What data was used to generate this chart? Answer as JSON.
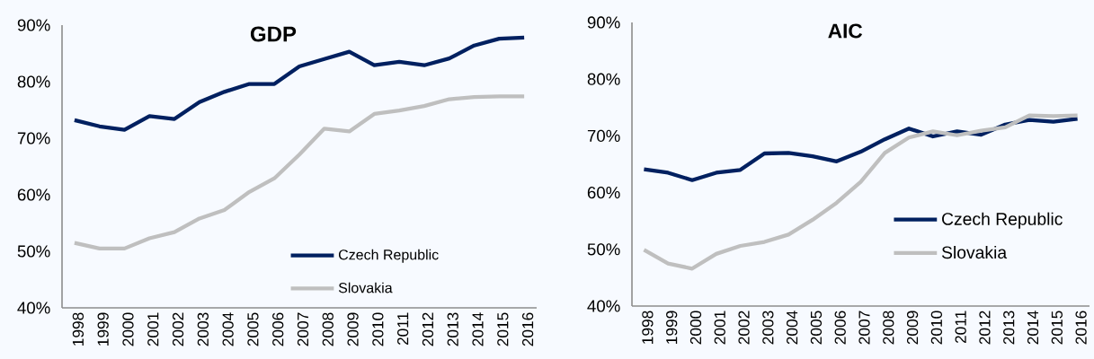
{
  "chart_data": [
    {
      "type": "line",
      "title": "GDP",
      "categories": [
        "1998",
        "1999",
        "2000",
        "2001",
        "2002",
        "2003",
        "2004",
        "2005",
        "2006",
        "2007",
        "2008",
        "2009",
        "2010",
        "2011",
        "2012",
        "2013",
        "2014",
        "2015",
        "2016"
      ],
      "series": [
        {
          "name": "Czech Republic",
          "color": "#002060",
          "values": [
            73.2,
            72.1,
            71.5,
            73.9,
            73.4,
            76.4,
            78.2,
            79.6,
            79.6,
            82.7,
            84.0,
            85.3,
            82.9,
            83.5,
            82.9,
            84.1,
            86.4,
            87.6,
            87.8
          ]
        },
        {
          "name": "Slovakia",
          "color": "#bfbfbf",
          "values": [
            51.5,
            50.5,
            50.5,
            52.3,
            53.4,
            55.8,
            57.3,
            60.5,
            62.9,
            67.1,
            71.7,
            71.2,
            74.3,
            74.9,
            75.7,
            76.9,
            77.3,
            77.4,
            77.4
          ]
        }
      ],
      "ylim": [
        40,
        90
      ],
      "yticks": [
        {
          "value": 40,
          "label": "40%"
        },
        {
          "value": 50,
          "label": "50%"
        },
        {
          "value": 60,
          "label": "60%"
        },
        {
          "value": 70,
          "label": "70%"
        },
        {
          "value": 80,
          "label": "80%"
        },
        {
          "value": 90,
          "label": "90%"
        }
      ],
      "legend": "bottom right"
    },
    {
      "type": "line",
      "title": "AIC",
      "categories": [
        "1998",
        "1999",
        "2000",
        "2001",
        "2002",
        "2003",
        "2004",
        "2005",
        "2006",
        "2007",
        "2008",
        "2009",
        "2010",
        "2011",
        "2012",
        "2013",
        "2014",
        "2015",
        "2016"
      ],
      "series": [
        {
          "name": "Czech Republic",
          "color": "#002060",
          "values": [
            64.1,
            63.5,
            62.2,
            63.5,
            64.0,
            66.9,
            67.0,
            66.4,
            65.5,
            67.2,
            69.4,
            71.3,
            69.9,
            70.8,
            70.2,
            72.0,
            72.8,
            72.5,
            73.0
          ]
        },
        {
          "name": "Slovakia",
          "color": "#bfbfbf",
          "values": [
            49.9,
            47.5,
            46.6,
            49.2,
            50.6,
            51.3,
            52.6,
            55.2,
            58.2,
            61.9,
            67.0,
            69.7,
            70.8,
            70.1,
            70.9,
            71.5,
            73.6,
            73.5,
            73.6
          ]
        }
      ],
      "ylim": [
        40,
        90
      ],
      "yticks": [
        {
          "value": 40,
          "label": "40%"
        },
        {
          "value": 50,
          "label": "50%"
        },
        {
          "value": 60,
          "label": "60%"
        },
        {
          "value": 70,
          "label": "70%"
        },
        {
          "value": 80,
          "label": "80%"
        },
        {
          "value": 90,
          "label": "90%"
        }
      ],
      "legend": "right"
    }
  ]
}
